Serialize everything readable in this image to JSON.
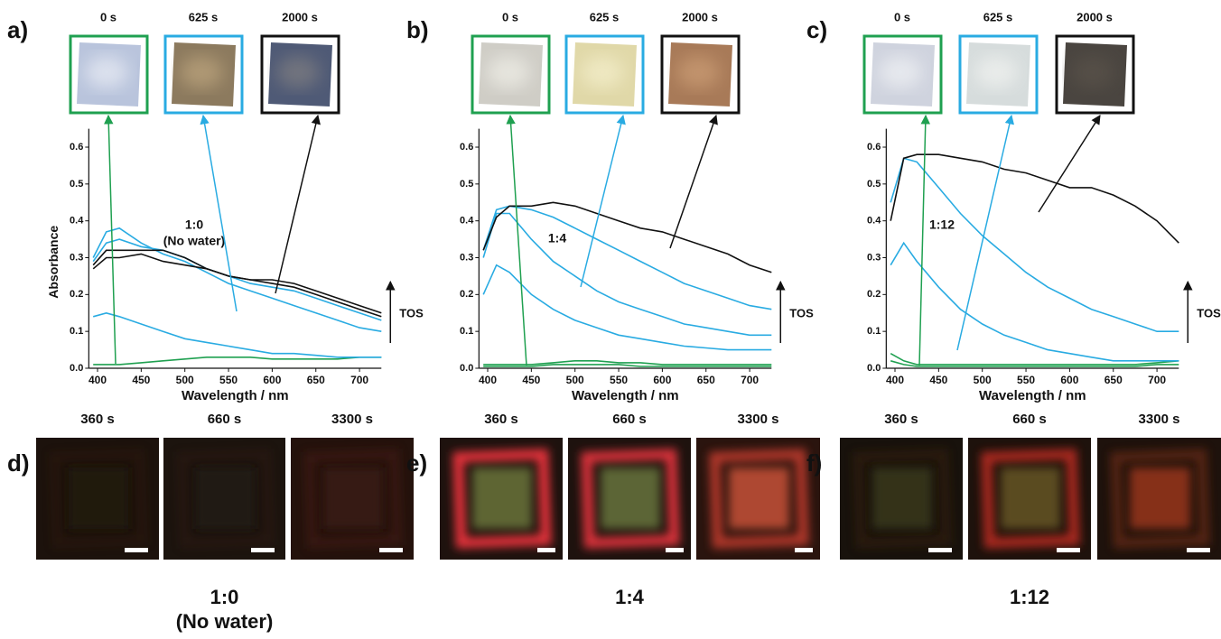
{
  "chart_data": [
    {
      "type": "line",
      "panel_label": "a)",
      "inset_labels": [
        "0 s",
        "625 s",
        "2000 s"
      ],
      "annotation": [
        "1:0",
        "(No water)"
      ],
      "x_label": "Wavelength / nm",
      "y_label": "Absorbance",
      "arrow_label": "TOS",
      "x": [
        395,
        410,
        425,
        450,
        475,
        500,
        525,
        550,
        575,
        600,
        625,
        650,
        675,
        700,
        725
      ],
      "xlim": [
        390,
        725
      ],
      "xticks": [
        400,
        450,
        500,
        550,
        600,
        650,
        700
      ],
      "ylim": [
        0,
        0.65
      ],
      "yticks": [
        {
          "value": 0,
          "label": "0.0"
        },
        0.1,
        0.2,
        0.3,
        0.4,
        0.5,
        0.6
      ],
      "series": [
        {
          "color": "#1fa050",
          "values": [
            0.01,
            0.01,
            0.01,
            0.015,
            0.02,
            0.025,
            0.03,
            0.03,
            0.03,
            0.025,
            0.025,
            0.025,
            0.025,
            0.03,
            0.03
          ]
        },
        {
          "color": "#29abe2",
          "values": [
            0.14,
            0.15,
            0.14,
            0.12,
            0.1,
            0.08,
            0.07,
            0.06,
            0.05,
            0.04,
            0.04,
            0.035,
            0.03,
            0.03,
            0.03
          ]
        },
        {
          "color": "#29abe2",
          "values": [
            0.3,
            0.37,
            0.38,
            0.34,
            0.31,
            0.29,
            0.26,
            0.23,
            0.21,
            0.19,
            0.17,
            0.15,
            0.13,
            0.11,
            0.1
          ]
        },
        {
          "color": "#29abe2",
          "values": [
            0.29,
            0.34,
            0.35,
            0.33,
            0.32,
            0.3,
            0.27,
            0.25,
            0.23,
            0.22,
            0.21,
            0.19,
            0.17,
            0.15,
            0.13
          ]
        },
        {
          "color": "#111111",
          "values": [
            0.28,
            0.32,
            0.32,
            0.32,
            0.32,
            0.3,
            0.27,
            0.25,
            0.24,
            0.24,
            0.23,
            0.21,
            0.19,
            0.17,
            0.15
          ]
        },
        {
          "color": "#111111",
          "values": [
            0.27,
            0.3,
            0.3,
            0.31,
            0.29,
            0.28,
            0.27,
            0.25,
            0.24,
            0.23,
            0.22,
            0.2,
            0.18,
            0.16,
            0.14
          ]
        }
      ]
    },
    {
      "type": "line",
      "panel_label": "b)",
      "inset_labels": [
        "0 s",
        "625 s",
        "2000 s"
      ],
      "annotation": [
        "1:4"
      ],
      "x_label": "Wavelength / nm",
      "arrow_label": "TOS",
      "x": [
        395,
        410,
        425,
        450,
        475,
        500,
        525,
        550,
        575,
        600,
        625,
        650,
        675,
        700,
        725
      ],
      "xlim": [
        390,
        725
      ],
      "xticks": [
        400,
        450,
        500,
        550,
        600,
        650,
        700
      ],
      "ylim": [
        0,
        0.65
      ],
      "yticks": [
        {
          "value": 0,
          "label": "0.0"
        },
        0.1,
        0.2,
        0.3,
        0.4,
        0.5,
        0.6
      ],
      "series": [
        {
          "color": "#1fa050",
          "values": [
            0.01,
            0.01,
            0.01,
            0.01,
            0.015,
            0.02,
            0.02,
            0.015,
            0.015,
            0.01,
            0.01,
            0.01,
            0.01,
            0.01,
            0.01
          ]
        },
        {
          "color": "#1fa050",
          "values": [
            0.005,
            0.005,
            0.005,
            0.005,
            0.01,
            0.01,
            0.01,
            0.01,
            0.005,
            0.005,
            0.005,
            0.005,
            0.005,
            0.005,
            0.005
          ]
        },
        {
          "color": "#29abe2",
          "values": [
            0.2,
            0.28,
            0.26,
            0.2,
            0.16,
            0.13,
            0.11,
            0.09,
            0.08,
            0.07,
            0.06,
            0.055,
            0.05,
            0.05,
            0.05
          ]
        },
        {
          "color": "#29abe2",
          "values": [
            0.3,
            0.42,
            0.42,
            0.35,
            0.29,
            0.25,
            0.21,
            0.18,
            0.16,
            0.14,
            0.12,
            0.11,
            0.1,
            0.09,
            0.09
          ]
        },
        {
          "color": "#29abe2",
          "values": [
            0.32,
            0.43,
            0.44,
            0.43,
            0.41,
            0.38,
            0.35,
            0.32,
            0.29,
            0.26,
            0.23,
            0.21,
            0.19,
            0.17,
            0.16
          ]
        },
        {
          "color": "#111111",
          "values": [
            0.32,
            0.41,
            0.44,
            0.44,
            0.45,
            0.44,
            0.42,
            0.4,
            0.38,
            0.37,
            0.35,
            0.33,
            0.31,
            0.28,
            0.26
          ]
        }
      ]
    },
    {
      "type": "line",
      "panel_label": "c)",
      "inset_labels": [
        "0 s",
        "625 s",
        "2000 s"
      ],
      "annotation": [
        "1:12"
      ],
      "x_label": "Wavelength / nm",
      "arrow_label": "TOS",
      "x": [
        395,
        410,
        425,
        450,
        475,
        500,
        525,
        550,
        575,
        600,
        625,
        650,
        675,
        700,
        725
      ],
      "xlim": [
        390,
        725
      ],
      "xticks": [
        400,
        450,
        500,
        550,
        600,
        650,
        700
      ],
      "ylim": [
        0,
        0.65
      ],
      "yticks": [
        {
          "value": 0,
          "label": "0.0"
        },
        0.1,
        0.2,
        0.3,
        0.4,
        0.5,
        0.6
      ],
      "series": [
        {
          "color": "#1fa050",
          "values": [
            0.04,
            0.02,
            0.01,
            0.01,
            0.01,
            0.01,
            0.01,
            0.01,
            0.01,
            0.01,
            0.01,
            0.01,
            0.01,
            0.015,
            0.02
          ]
        },
        {
          "color": "#1fa050",
          "values": [
            0.02,
            0.01,
            0.005,
            0.005,
            0.005,
            0.005,
            0.005,
            0.005,
            0.005,
            0.005,
            0.005,
            0.005,
            0.005,
            0.01,
            0.01
          ]
        },
        {
          "color": "#29abe2",
          "values": [
            0.28,
            0.34,
            0.29,
            0.22,
            0.16,
            0.12,
            0.09,
            0.07,
            0.05,
            0.04,
            0.03,
            0.02,
            0.02,
            0.02,
            0.02
          ]
        },
        {
          "color": "#29abe2",
          "values": [
            0.45,
            0.57,
            0.56,
            0.49,
            0.42,
            0.36,
            0.31,
            0.26,
            0.22,
            0.19,
            0.16,
            0.14,
            0.12,
            0.1,
            0.1
          ]
        },
        {
          "color": "#111111",
          "values": [
            0.4,
            0.57,
            0.58,
            0.58,
            0.57,
            0.56,
            0.54,
            0.53,
            0.51,
            0.49,
            0.49,
            0.47,
            0.44,
            0.4,
            0.34
          ]
        }
      ]
    }
  ],
  "image_panels": [
    {
      "label": "d)",
      "times": [
        "360 s",
        "660 s",
        "3300 s"
      ],
      "caption": [
        "1:0",
        "(No water)"
      ]
    },
    {
      "label": "e)",
      "times": [
        "360 s",
        "660 s",
        "3300 s"
      ],
      "caption": [
        "1:4"
      ]
    },
    {
      "label": "f)",
      "times": [
        "360 s",
        "660 s",
        "3300 s"
      ],
      "caption": [
        "1:12"
      ]
    }
  ]
}
